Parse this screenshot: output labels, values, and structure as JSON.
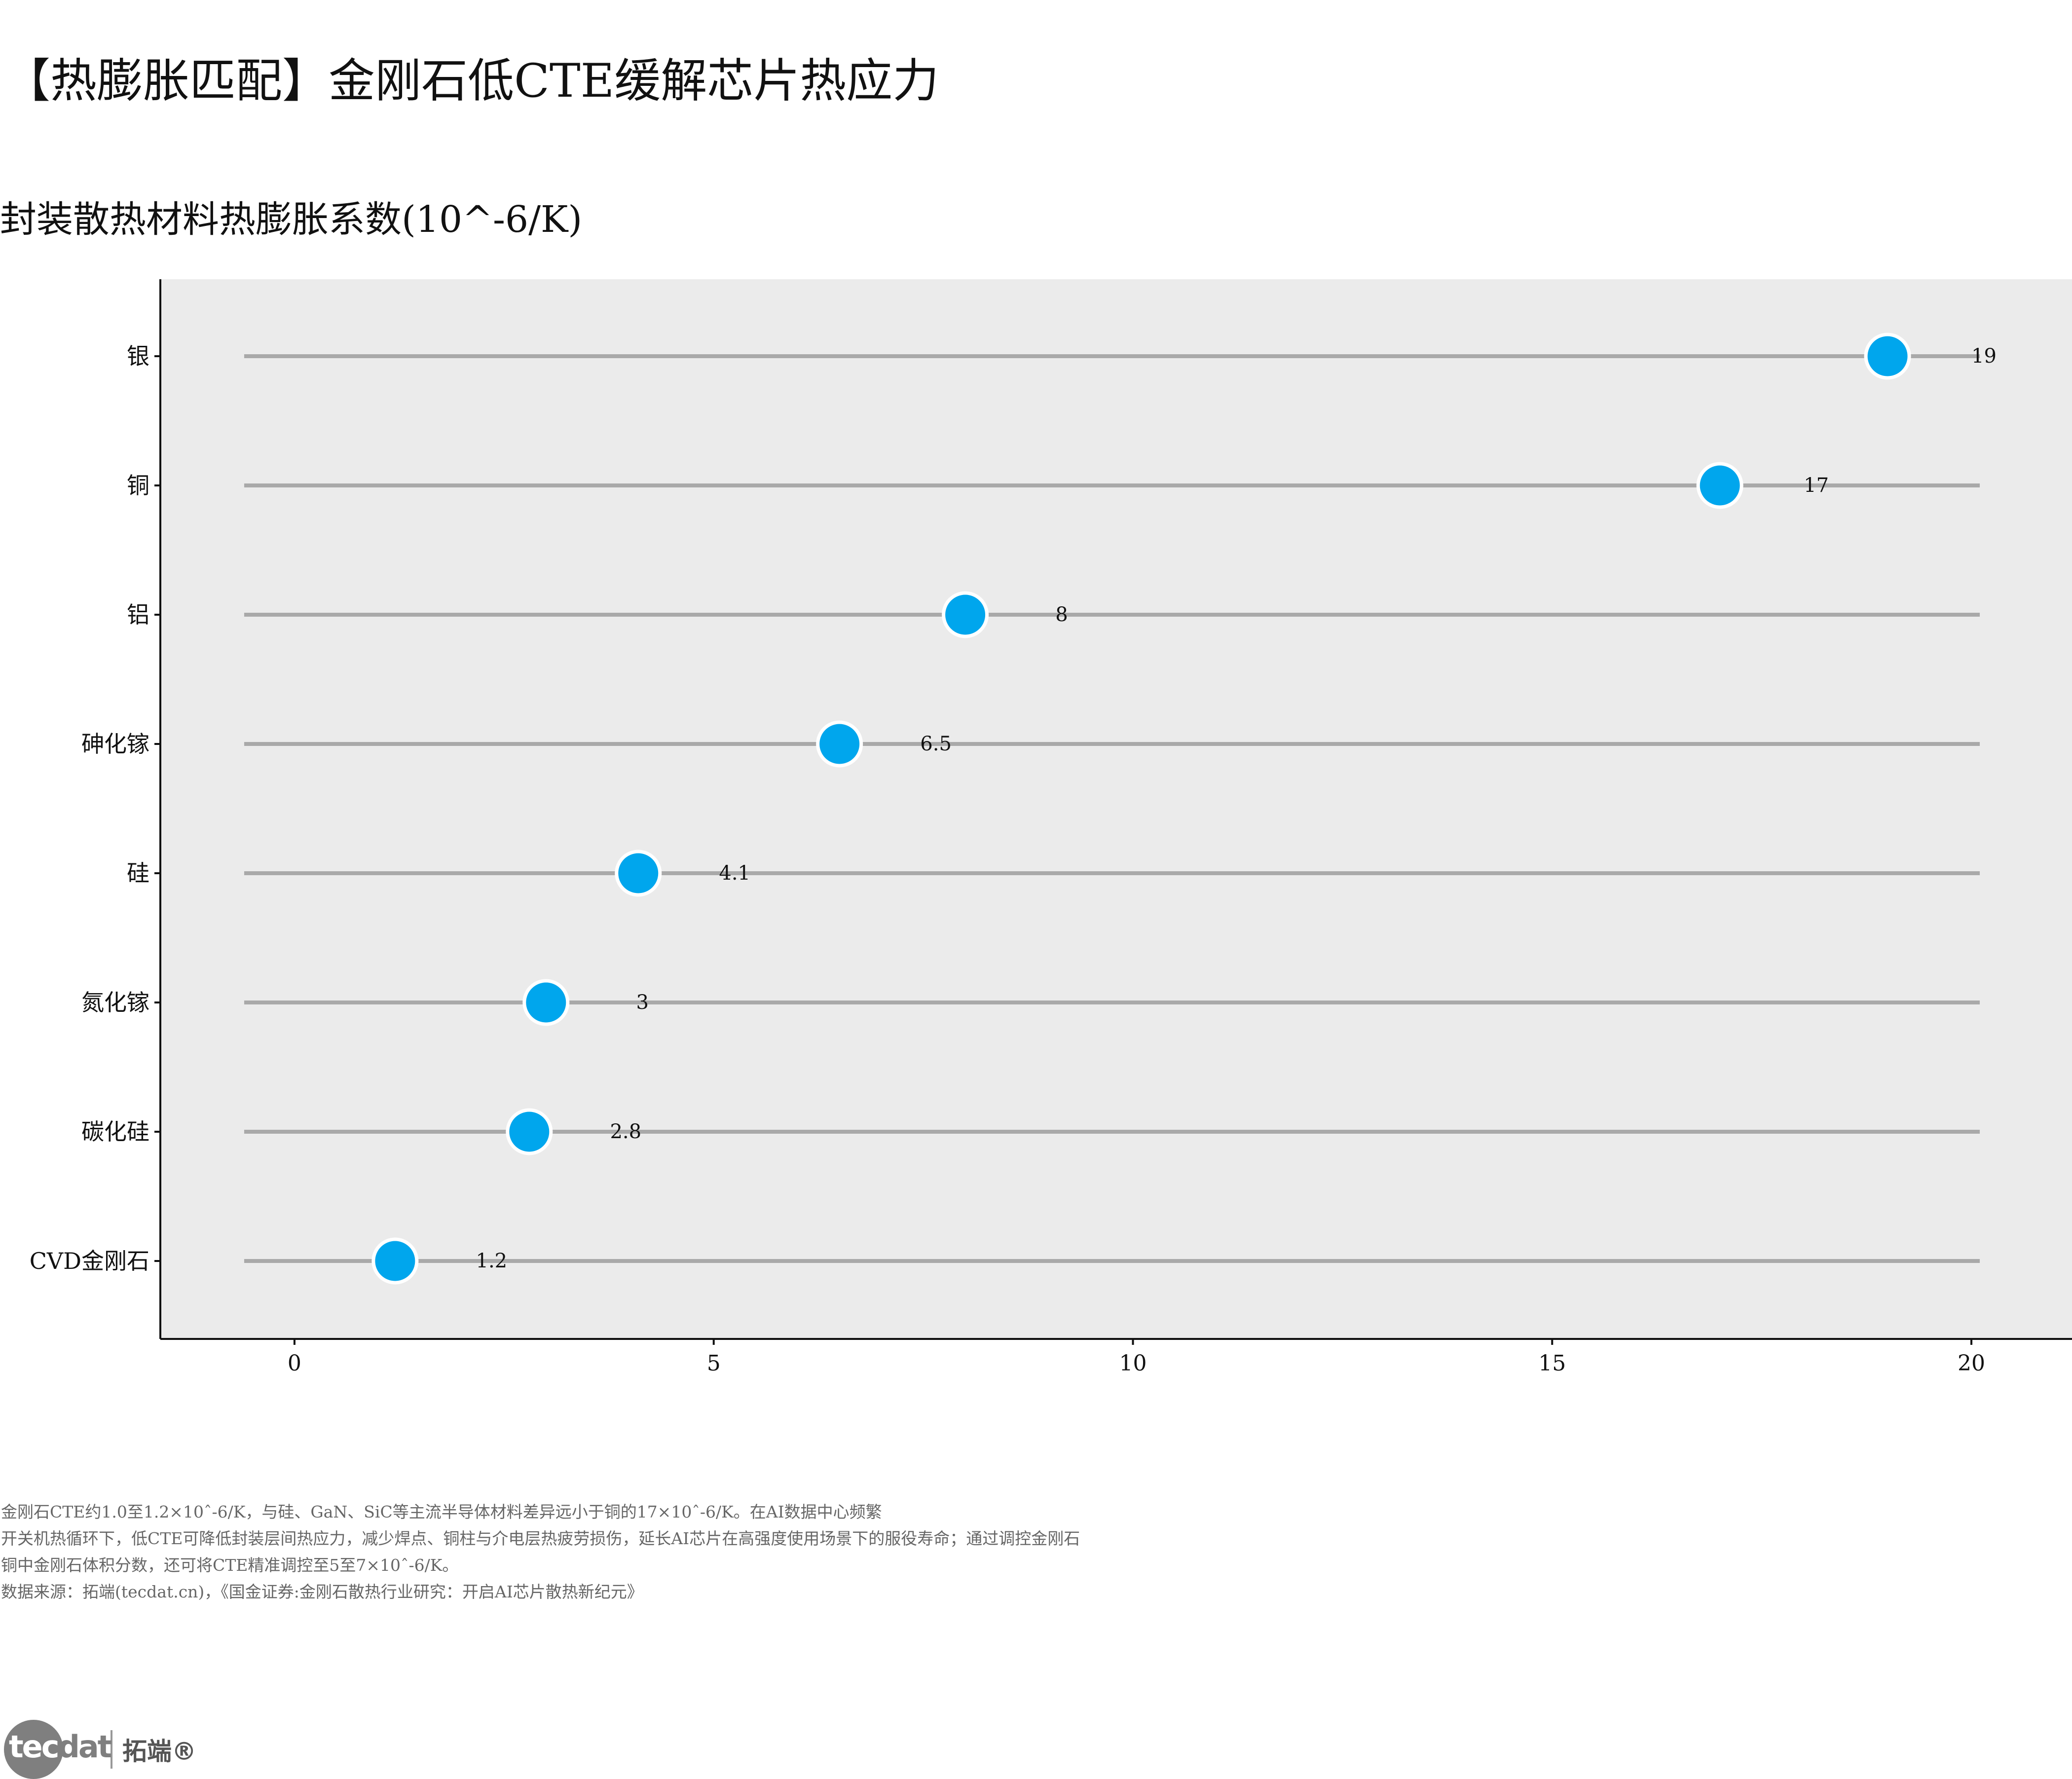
{
  "title": "【热膨胀匹配】金刚石低CTE缓解芯片热应力",
  "subtitle": "封装散热材料热膨胀系数(10^-6/K)",
  "colors": {
    "panel_bg": "#ebebeb",
    "segment": "#a9a9a9",
    "point_fill": "#00a6ed",
    "point_stroke": "#ffffff",
    "text": "#111111",
    "note_text": "#666666"
  },
  "chart_data": {
    "type": "lollipop",
    "orientation": "horizontal",
    "categories": [
      "银",
      "铜",
      "铝",
      "砷化镓",
      "硅",
      "氮化镓",
      "碳化硅",
      "CVD金刚石"
    ],
    "values": [
      19,
      17,
      8,
      6.5,
      4.1,
      3,
      2.8,
      1.2
    ],
    "value_labels": [
      "19",
      "17",
      "8",
      "6.5",
      "4.1",
      "3",
      "2.8",
      "1.2"
    ],
    "xlim": [
      -1.6,
      21.2
    ],
    "x_ticks": [
      0,
      5,
      10,
      15,
      20
    ],
    "x_tick_labels": [
      "0",
      "5",
      "10",
      "15",
      "20"
    ],
    "segment_range": [
      -0.6,
      20.1
    ],
    "grid": false,
    "legend": "none"
  },
  "notes": [
    "金刚石CTE约1.0至1.2×10ˆ-6/K，与硅、GaN、SiC等主流半导体材料差异远小于铜的17×10ˆ-6/K。在AI数据中心频繁",
    "开关机热循环下，低CTE可降低封装层间热应力，减少焊点、铜柱与介电层热疲劳损伤，延长AI芯片在高强度使用场景下的服役寿命；通过调控金刚石",
    "铜中金刚石体积分数，还可将CTE精准调控至5至7×10ˆ-6/K。",
    "数据来源：拓端(tecdat.cn)，《国金证券:金刚石散热行业研究：开启AI芯片散热新纪元》"
  ],
  "logo": {
    "word_light": "tec",
    "word_dark": "dat",
    "cn": "拓端®"
  }
}
